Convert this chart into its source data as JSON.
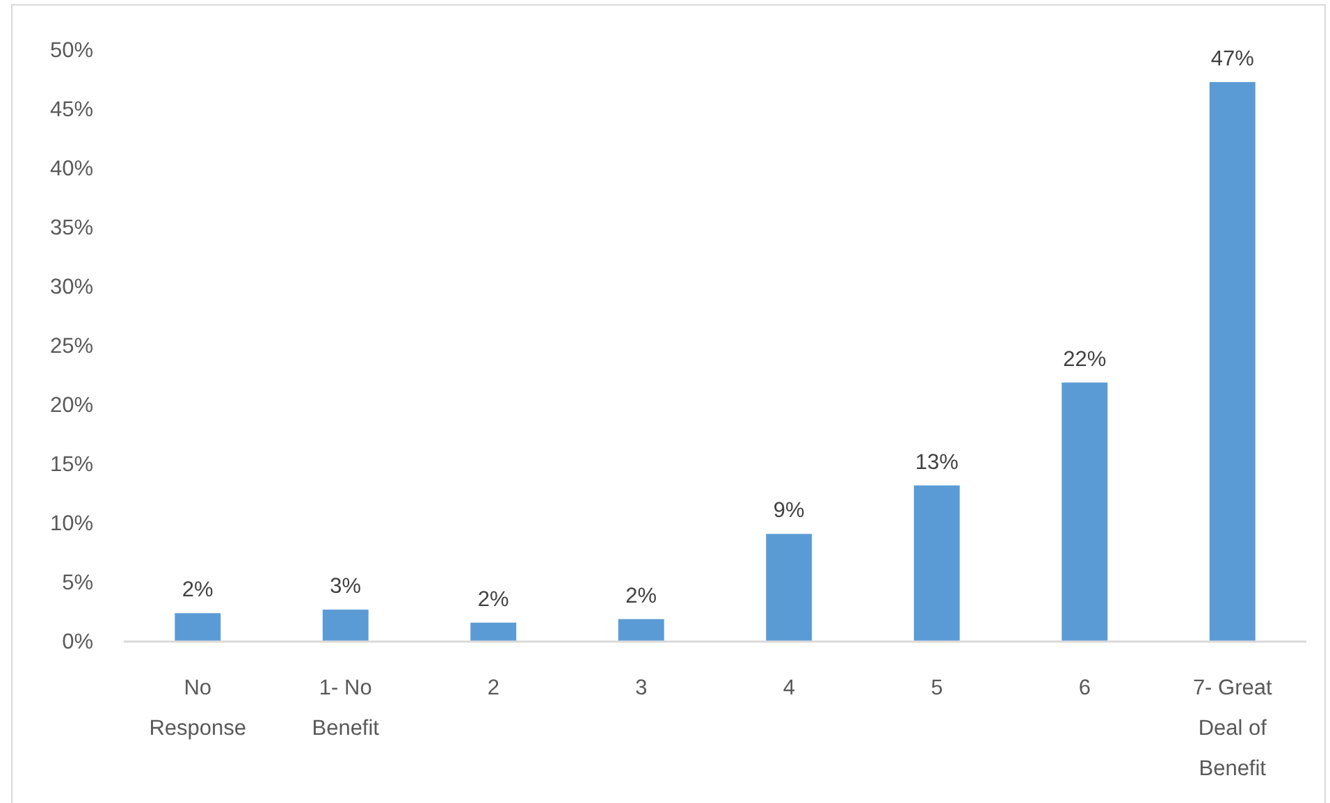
{
  "chart_data": {
    "type": "bar",
    "categories": [
      "No Response",
      "1- No Benefit",
      "2",
      "3",
      "4",
      "5",
      "6",
      "7- Great Deal of Benefit"
    ],
    "values": [
      2.4,
      2.7,
      1.6,
      1.9,
      9.1,
      13.2,
      21.9,
      47.3
    ],
    "value_labels": [
      "2%",
      "3%",
      "2%",
      "2%",
      "9%",
      "13%",
      "22%",
      "47%"
    ],
    "color": "#5b9bd5",
    "ylim": [
      0,
      50
    ],
    "yticks": [
      {
        "value": 0,
        "label": "0%"
      },
      {
        "value": 5,
        "label": "5%"
      },
      {
        "value": 10,
        "label": "10%"
      },
      {
        "value": 15,
        "label": "15%"
      },
      {
        "value": 20,
        "label": "20%"
      },
      {
        "value": 25,
        "label": "25%"
      },
      {
        "value": 30,
        "label": "30%"
      },
      {
        "value": 35,
        "label": "35%"
      },
      {
        "value": 40,
        "label": "40%"
      },
      {
        "value": 45,
        "label": "45%"
      },
      {
        "value": 50,
        "label": "50%"
      }
    ],
    "grid": false
  }
}
